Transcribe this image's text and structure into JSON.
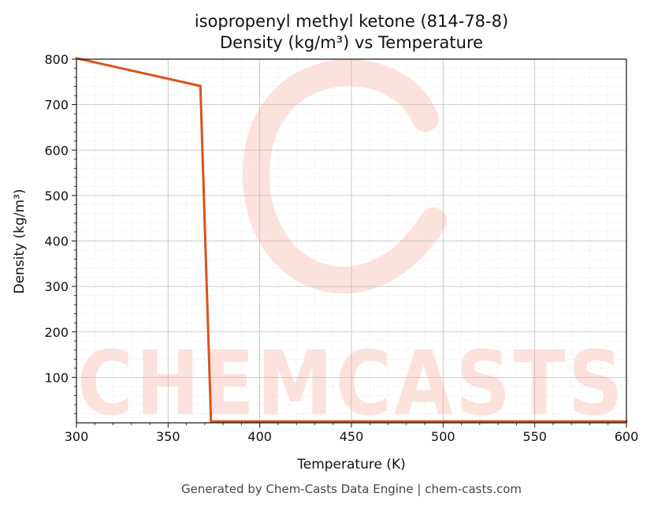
{
  "chart_data": {
    "type": "line",
    "title_line1": "isopropenyl methyl ketone (814-78-8)",
    "title_line2": "Density (kg/m³) vs Temperature",
    "xlabel": "Temperature (K)",
    "ylabel": "Density (kg/m³)",
    "xlim": [
      300,
      600
    ],
    "ylim": [
      0,
      800
    ],
    "xticks": [
      300,
      350,
      400,
      450,
      500,
      550,
      600
    ],
    "yticks": [
      100,
      200,
      300,
      400,
      500,
      600,
      700,
      800
    ],
    "grid": true,
    "series": [
      {
        "color": "#d9531e",
        "x": [
          300,
          367.6,
          373.4,
          600
        ],
        "y": [
          802,
          741,
          3,
          3
        ]
      }
    ]
  },
  "watermark": {
    "text": "CHEMCASTS",
    "color": "#fde1dc"
  },
  "footer": "Generated by Chem-Casts Data Engine | chem-casts.com"
}
